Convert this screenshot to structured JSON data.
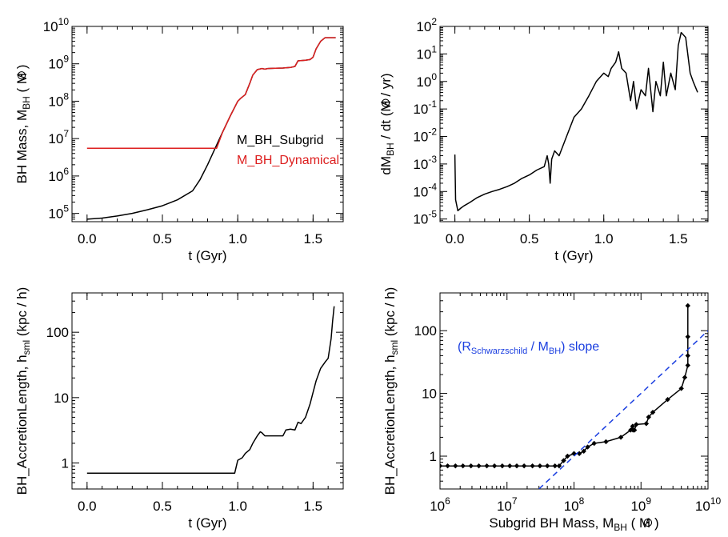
{
  "chart_data": [
    {
      "id": "p1",
      "type": "line",
      "xscale": "linear",
      "yscale": "log",
      "xlim": [
        -0.1,
        1.7
      ],
      "ylim": [
        60000,
        10000000000
      ],
      "xticks": [
        0.0,
        0.5,
        1.0,
        1.5
      ],
      "xtick_labels": [
        "0.0",
        "0.5",
        "1.0",
        "1.5"
      ],
      "yticks": [
        100000,
        1000000,
        10000000,
        100000000,
        1000000000,
        10000000000
      ],
      "ytick_labels": [
        [
          "10",
          "5"
        ],
        [
          "10",
          "6"
        ],
        [
          "10",
          "7"
        ],
        [
          "10",
          "8"
        ],
        [
          "10",
          "9"
        ],
        [
          "10",
          "10"
        ]
      ],
      "xlabel": "t   (Gyr)",
      "ylabel": {
        "main": "BH Mass, M",
        "sub": "BH",
        "unit_pre": "( M",
        "unit_post": ")"
      },
      "legend": [
        {
          "name": "M_BH_Subgrid",
          "color": "#000000"
        },
        {
          "name": "M_BH_Dynamical",
          "color": "#dd2020"
        }
      ],
      "series": [
        {
          "name": "M_BH_Subgrid",
          "color": "#000000",
          "x": [
            0.0,
            0.1,
            0.2,
            0.3,
            0.4,
            0.5,
            0.6,
            0.7,
            0.75,
            0.8,
            0.85,
            0.9,
            0.95,
            1.0,
            1.02,
            1.05,
            1.08,
            1.1,
            1.13,
            1.16,
            1.18,
            1.2,
            1.25,
            1.3,
            1.35,
            1.38,
            1.4,
            1.45,
            1.48,
            1.5,
            1.52,
            1.55,
            1.58,
            1.6,
            1.65
          ],
          "y": [
            70000,
            75000,
            85000,
            100000,
            125000,
            160000,
            230000,
            400000,
            800000,
            2000000,
            5500000,
            15000000,
            40000000,
            100000000,
            120000000,
            150000000,
            300000000,
            500000000,
            700000000,
            750000000,
            720000000,
            750000000,
            760000000,
            770000000,
            800000000,
            850000000,
            1200000000,
            1250000000,
            1300000000,
            1500000000,
            2500000000,
            4000000000,
            5000000000,
            5000000000,
            5000000000
          ]
        },
        {
          "name": "M_BH_Dynamical",
          "color": "#dd2020",
          "x": [
            0.0,
            0.86,
            0.9,
            0.95,
            1.0,
            1.02,
            1.05,
            1.08,
            1.1,
            1.13,
            1.16,
            1.18,
            1.2,
            1.25,
            1.3,
            1.35,
            1.38,
            1.4,
            1.45,
            1.48,
            1.5,
            1.52,
            1.55,
            1.58,
            1.6,
            1.65
          ],
          "y": [
            5500000,
            5500000,
            15000000,
            40000000,
            100000000,
            120000000,
            150000000,
            300000000,
            500000000,
            700000000,
            750000000,
            720000000,
            750000000,
            760000000,
            770000000,
            800000000,
            850000000,
            1200000000,
            1250000000,
            1300000000,
            1500000000,
            2500000000,
            4000000000,
            5000000000,
            5000000000,
            5000000000
          ]
        }
      ]
    },
    {
      "id": "p2",
      "type": "line",
      "xscale": "linear",
      "yscale": "log",
      "xlim": [
        -0.1,
        1.7
      ],
      "ylim": [
        8e-06,
        100
      ],
      "xticks": [
        0.0,
        0.5,
        1.0,
        1.5
      ],
      "xtick_labels": [
        "0.0",
        "0.5",
        "1.0",
        "1.5"
      ],
      "yticks": [
        1e-05,
        0.0001,
        0.001,
        0.01,
        0.1,
        1,
        10,
        100
      ],
      "ytick_labels": [
        [
          "10",
          "-5"
        ],
        [
          "10",
          "-4"
        ],
        [
          "10",
          "-3"
        ],
        [
          "10",
          "-2"
        ],
        [
          "10",
          "-1"
        ],
        [
          "10",
          "0"
        ],
        [
          "10",
          "1"
        ],
        [
          "10",
          "2"
        ]
      ],
      "xlabel": "t   (Gyr)",
      "ylabel": {
        "main": "dM",
        "sub": "BH",
        "tail": " / dt",
        "unit_pre": "(M",
        "unit_post": " / yr)"
      },
      "series": [
        {
          "name": "",
          "color": "#000000",
          "x": [
            0.0,
            0.005,
            0.02,
            0.04,
            0.06,
            0.1,
            0.15,
            0.2,
            0.25,
            0.3,
            0.35,
            0.4,
            0.45,
            0.5,
            0.55,
            0.6,
            0.62,
            0.63,
            0.64,
            0.65,
            0.67,
            0.7,
            0.75,
            0.8,
            0.85,
            0.9,
            0.95,
            1.0,
            1.03,
            1.05,
            1.08,
            1.1,
            1.12,
            1.15,
            1.18,
            1.2,
            1.22,
            1.25,
            1.28,
            1.3,
            1.33,
            1.35,
            1.38,
            1.4,
            1.42,
            1.45,
            1.48,
            1.5,
            1.52,
            1.55,
            1.58,
            1.6,
            1.63
          ],
          "y": [
            0.0022,
            5e-05,
            2e-05,
            2.5e-05,
            3e-05,
            4e-05,
            6e-05,
            8e-05,
            0.0001,
            0.00012,
            0.00015,
            0.0002,
            0.0003,
            0.0004,
            0.0006,
            0.0008,
            0.002,
            0.001,
            0.0002,
            0.0015,
            0.003,
            0.002,
            0.01,
            0.05,
            0.1,
            0.3,
            1,
            2,
            1.5,
            3,
            5,
            12,
            3,
            2,
            0.2,
            1,
            0.1,
            0.5,
            0.3,
            3,
            0.08,
            1,
            0.3,
            5,
            0.3,
            2,
            0.5,
            20,
            60,
            40,
            2,
            1,
            0.4
          ]
        }
      ]
    },
    {
      "id": "p3",
      "type": "line",
      "xscale": "linear",
      "yscale": "log",
      "xlim": [
        -0.1,
        1.7
      ],
      "ylim": [
        0.4,
        400
      ],
      "xticks": [
        0.0,
        0.5,
        1.0,
        1.5
      ],
      "xtick_labels": [
        "0.0",
        "0.5",
        "1.0",
        "1.5"
      ],
      "yticks": [
        1,
        10,
        100
      ],
      "ytick_labels": [
        [
          "1",
          ""
        ],
        [
          "10",
          ""
        ],
        [
          "100",
          ""
        ]
      ],
      "xlabel": "t   (Gyr)",
      "ylabel": {
        "main": "BH_AccretionLength, h",
        "sub": "sml",
        "unit_pre": "(kpc / h)",
        "unit_post": ""
      },
      "series": [
        {
          "name": "",
          "color": "#000000",
          "x": [
            0.0,
            0.5,
            0.98,
            1.0,
            1.03,
            1.05,
            1.08,
            1.1,
            1.13,
            1.15,
            1.16,
            1.18,
            1.2,
            1.3,
            1.32,
            1.35,
            1.38,
            1.4,
            1.42,
            1.45,
            1.48,
            1.5,
            1.52,
            1.55,
            1.58,
            1.6,
            1.62,
            1.63,
            1.64
          ],
          "y": [
            0.7,
            0.7,
            0.7,
            1.1,
            1.2,
            1.4,
            1.6,
            2.0,
            2.6,
            3.0,
            2.9,
            2.6,
            2.6,
            2.6,
            3.2,
            3.3,
            3.2,
            4.2,
            4.0,
            5.0,
            8.0,
            12.0,
            18.0,
            28.0,
            35.0,
            40.0,
            80.0,
            150.0,
            250.0
          ]
        }
      ]
    },
    {
      "id": "p4",
      "type": "scatter",
      "xscale": "log",
      "yscale": "log",
      "xlim": [
        1000000,
        10000000000
      ],
      "ylim": [
        0.3,
        400
      ],
      "xticks": [
        1000000,
        10000000,
        100000000,
        1000000000,
        10000000000
      ],
      "xtick_labels": [
        [
          "10",
          "6"
        ],
        [
          "10",
          "7"
        ],
        [
          "10",
          "8"
        ],
        [
          "10",
          "9"
        ],
        [
          "10",
          "10"
        ]
      ],
      "yticks": [
        1,
        10,
        100
      ],
      "ytick_labels": [
        [
          "1",
          ""
        ],
        [
          "10",
          ""
        ],
        [
          "100",
          ""
        ]
      ],
      "xlabel": {
        "main": "Subgrid BH Mass, M",
        "sub": "BH",
        "unit_pre": "( M",
        "unit_post": ")"
      },
      "ylabel": {
        "main": "BH_AccretionLength, h",
        "sub": "sml",
        "unit_pre": "(kpc / h)",
        "unit_post": ""
      },
      "annotation": {
        "pre": "(R",
        "sub": "Schwarzschild",
        "post": " / M",
        "sub2": "BH",
        "tail": ") slope",
        "color": "#1a3ee0"
      },
      "series": [
        {
          "name": "",
          "color": "#000000",
          "markers": true,
          "x": [
            1000000,
            1300000,
            1700000,
            2200000,
            2900000,
            3800000,
            5000000,
            6500000,
            8500000,
            11000000,
            14000000,
            18000000,
            24000000,
            31000000,
            40000000,
            52000000,
            60000000,
            70000000,
            80000000,
            100000000,
            120000000,
            140000000,
            160000000,
            200000000,
            300000000,
            500000000,
            700000000,
            750000000,
            760000000,
            800000000,
            850000000,
            1200000000,
            1300000000,
            1500000000,
            2500000000,
            4000000000,
            4500000000,
            5000000000,
            5000000000,
            5000000000,
            5000000000
          ],
          "y": [
            0.7,
            0.7,
            0.7,
            0.7,
            0.7,
            0.7,
            0.7,
            0.7,
            0.7,
            0.7,
            0.7,
            0.7,
            0.7,
            0.7,
            0.7,
            0.7,
            0.7,
            0.85,
            1.0,
            1.1,
            1.1,
            1.2,
            1.4,
            1.6,
            1.7,
            2.0,
            2.6,
            3.0,
            2.6,
            2.6,
            3.2,
            3.3,
            4.2,
            5.0,
            8.0,
            12.0,
            18.0,
            28.0,
            40.0,
            80.0,
            250.0
          ]
        },
        {
          "name": "",
          "color": "#1a3ee0",
          "dashed": true,
          "x": [
            30000000,
            10000000000
          ],
          "y": [
            0.3,
            100
          ]
        }
      ]
    }
  ]
}
